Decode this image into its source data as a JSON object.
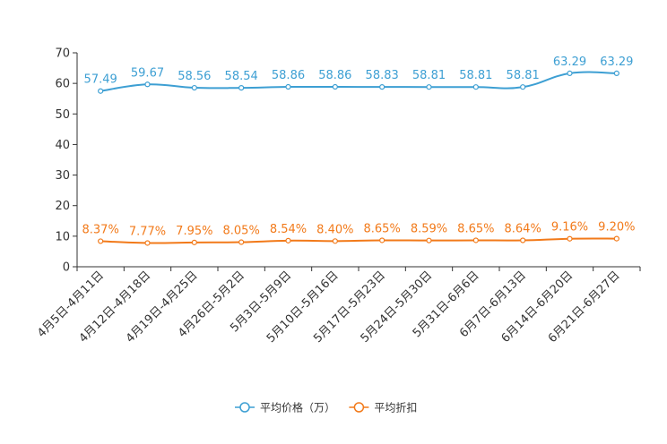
{
  "chart_data": {
    "type": "line",
    "title": "",
    "xlabel": "",
    "ylabel": "",
    "ylim": [
      0,
      70
    ],
    "yticks": [
      0,
      10,
      20,
      30,
      40,
      50,
      60,
      70
    ],
    "grid": false,
    "legend_position": "bottom",
    "categories": [
      "4月5日-4月11日",
      "4月12日-4月18日",
      "4月19日-4月25日",
      "4月26日-5月2日",
      "5月3日-5月9日",
      "5月10日-5月16日",
      "5月17日-5月23日",
      "5月24日-5月30日",
      "5月31日-6月6日",
      "6月7日-6月13日",
      "6月14日-6月20日",
      "6月21日-6月27日"
    ],
    "series": [
      {
        "name": "平均价格（万）",
        "color": "#3d9fd3",
        "values": [
          57.49,
          59.67,
          58.56,
          58.54,
          58.86,
          58.86,
          58.83,
          58.81,
          58.81,
          58.81,
          63.29,
          63.29
        ],
        "labels": [
          "57.49",
          "59.67",
          "58.56",
          "58.54",
          "58.86",
          "58.86",
          "58.83",
          "58.81",
          "58.81",
          "58.81",
          "63.29",
          "63.29"
        ]
      },
      {
        "name": "平均折扣",
        "color": "#f27a1a",
        "values": [
          8.37,
          7.77,
          7.95,
          8.05,
          8.54,
          8.4,
          8.65,
          8.59,
          8.65,
          8.64,
          9.16,
          9.2
        ],
        "labels": [
          "8.37%",
          "7.77%",
          "7.95%",
          "8.05%",
          "8.54%",
          "8.40%",
          "8.65%",
          "8.59%",
          "8.65%",
          "8.64%",
          "9.16%",
          "9.20%"
        ]
      }
    ]
  }
}
